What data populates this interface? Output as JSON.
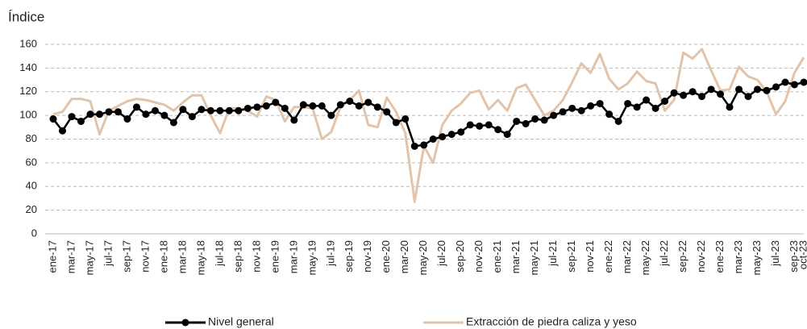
{
  "chart_data": {
    "type": "line",
    "y_label": "Índice",
    "categories": [
      "ene-17",
      null,
      "mar-17",
      null,
      "may-17",
      null,
      "jul-17",
      null,
      "sep-17",
      null,
      "nov-17",
      null,
      "ene-18",
      null,
      "mar-18",
      null,
      "may-18",
      null,
      "jul-18",
      null,
      "sep-18",
      null,
      "nov-18",
      null,
      "ene-19",
      null,
      "mar-19",
      null,
      "may-19",
      null,
      "jul-19",
      null,
      "sep-19",
      null,
      "nov-19",
      null,
      "ene-20",
      null,
      "mar-20",
      null,
      "may-20",
      null,
      "jul-20",
      null,
      "sep-20",
      null,
      "nov-20",
      null,
      "ene-21",
      null,
      "mar-21",
      null,
      "may-21",
      null,
      "jul-21",
      null,
      "sep-21",
      null,
      "nov-21",
      null,
      "ene-22",
      null,
      "mar-22",
      null,
      "may-22",
      null,
      "jul-22",
      null,
      "sep-22",
      null,
      "nov-22",
      null,
      "ene-23",
      null,
      "mar-23",
      null,
      "may-23",
      null,
      "jul-23",
      null,
      "sep-23",
      "oct-23"
    ],
    "series": [
      {
        "name": "Nivel general",
        "color": "#000000",
        "markers": true,
        "values": [
          97,
          87,
          99,
          95,
          101,
          101,
          103,
          103,
          97,
          107,
          101,
          104,
          100,
          94,
          105,
          99,
          105,
          104,
          104,
          104,
          104,
          106,
          107,
          108,
          111,
          106,
          96,
          109,
          108,
          108,
          100,
          109,
          112,
          108,
          111,
          107,
          103,
          94,
          97,
          74,
          75,
          80,
          82,
          84,
          86,
          92,
          91,
          92,
          88,
          84,
          95,
          93,
          97,
          96,
          100,
          103,
          106,
          104,
          108,
          110,
          101,
          95,
          110,
          107,
          113,
          106,
          112,
          119,
          117,
          120,
          116,
          122,
          118,
          107,
          122,
          116,
          122,
          121,
          124,
          128,
          126,
          128
        ]
      },
      {
        "name": "Extracción de piedra caliza y yeso",
        "color": "#e2c4aa",
        "markers": false,
        "values": [
          101,
          103,
          114,
          114,
          112,
          84,
          104,
          108,
          112,
          114,
          113,
          111,
          109,
          104,
          111,
          117,
          117,
          100,
          85,
          106,
          106,
          104,
          99,
          116,
          113,
          95,
          107,
          107,
          106,
          80,
          86,
          107,
          113,
          121,
          92,
          90,
          115,
          103,
          85,
          27,
          74,
          60,
          92,
          104,
          110,
          119,
          121,
          105,
          113,
          104,
          123,
          126,
          113,
          100,
          104,
          113,
          128,
          144,
          136,
          152,
          131,
          122,
          127,
          137,
          129,
          127,
          104,
          113,
          153,
          148,
          156,
          138,
          121,
          122,
          141,
          133,
          130,
          120,
          101,
          112,
          136,
          149
        ]
      }
    ],
    "ylim": [
      0,
      160
    ],
    "yticks": [
      0,
      20,
      40,
      60,
      80,
      100,
      120,
      140,
      160
    ],
    "grid": true,
    "legend": "bottom"
  }
}
